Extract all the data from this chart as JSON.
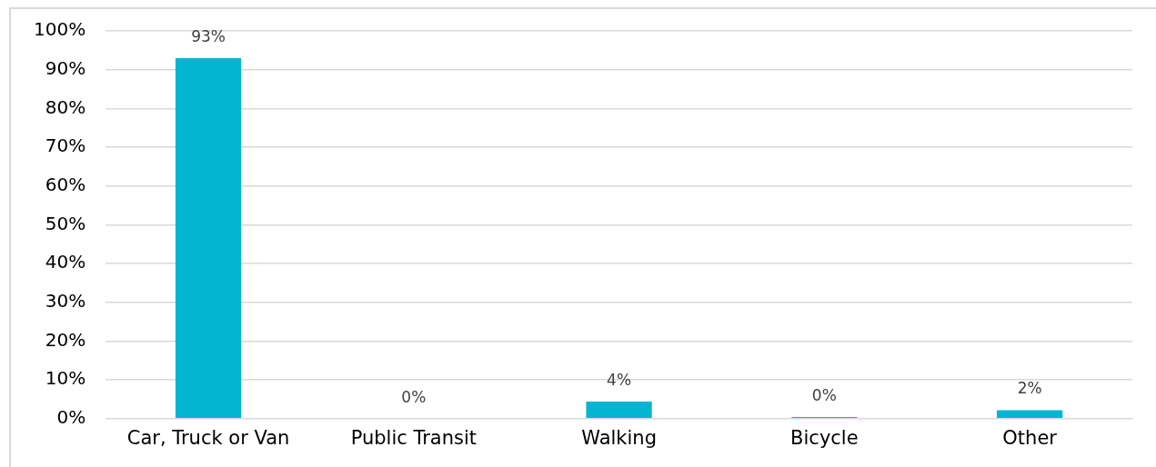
{
  "chart_data": {
    "type": "bar",
    "categories": [
      "Car, Truck or Van",
      "Public Transit",
      "Walking",
      "Bicycle",
      "Other"
    ],
    "values": [
      93,
      0,
      4.4,
      0.4,
      2.2
    ],
    "value_labels": [
      "93%",
      "0%",
      "4%",
      "0%",
      "2%"
    ],
    "color": "#04b5d1",
    "ylim": [
      0,
      100
    ],
    "yticks": [
      {
        "value": 0,
        "label": "0%"
      },
      {
        "value": 10,
        "label": "10%"
      },
      {
        "value": 20,
        "label": "20%"
      },
      {
        "value": 30,
        "label": "30%"
      },
      {
        "value": 40,
        "label": "40%"
      },
      {
        "value": 50,
        "label": "50%"
      },
      {
        "value": 60,
        "label": "60%"
      },
      {
        "value": 70,
        "label": "70%"
      },
      {
        "value": 80,
        "label": "80%"
      },
      {
        "value": 90,
        "label": "90%"
      },
      {
        "value": 100,
        "label": "100%"
      }
    ],
    "grid": "y",
    "legend": false
  }
}
